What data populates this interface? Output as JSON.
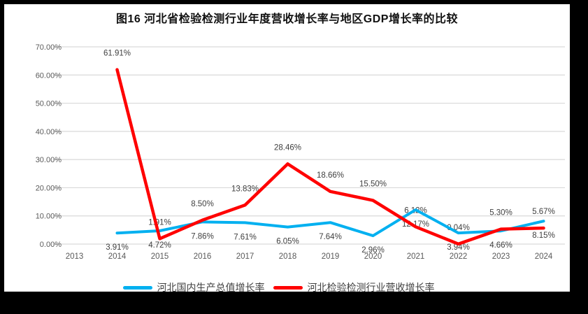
{
  "chart_data": {
    "type": "line",
    "title": "图16 河北省检验检测行业年度营收增长率与地区GDP增长率的比较",
    "categories": [
      "2013",
      "2014",
      "2015",
      "2016",
      "2017",
      "2018",
      "2019",
      "2020",
      "2021",
      "2022",
      "2023",
      "2024"
    ],
    "series": [
      {
        "key": "gdp-growth",
        "name": "河北国内生产总值增长率",
        "color": "#00B0F0",
        "label_position": "below",
        "values": [
          null,
          3.91,
          4.72,
          7.86,
          7.61,
          6.05,
          7.64,
          2.96,
          12.17,
          3.94,
          4.66,
          8.15
        ]
      },
      {
        "key": "testing-revenue-growth",
        "name": "河北检验检测行业营收增长率",
        "color": "#FF0000",
        "label_position": "above",
        "values": [
          null,
          61.91,
          1.91,
          8.5,
          13.83,
          28.46,
          18.66,
          15.5,
          6.12,
          0.04,
          5.3,
          5.67
        ]
      }
    ],
    "y_axis": {
      "min": 0,
      "max": 70,
      "tick_step": 10,
      "tick_labels": [
        "0.00%",
        "10.00%",
        "20.00%",
        "30.00%",
        "40.00%",
        "50.00%",
        "60.00%",
        "70.00%"
      ]
    },
    "grid": true,
    "legend_position": "bottom",
    "data_label_format": "0.00%",
    "colors": {
      "gridline": "#D9D9D9",
      "axis_text": "#595959",
      "data_label_text": "#404040",
      "title_text": "#111111",
      "frame": "#000000",
      "background": "#FFFFFF"
    }
  }
}
